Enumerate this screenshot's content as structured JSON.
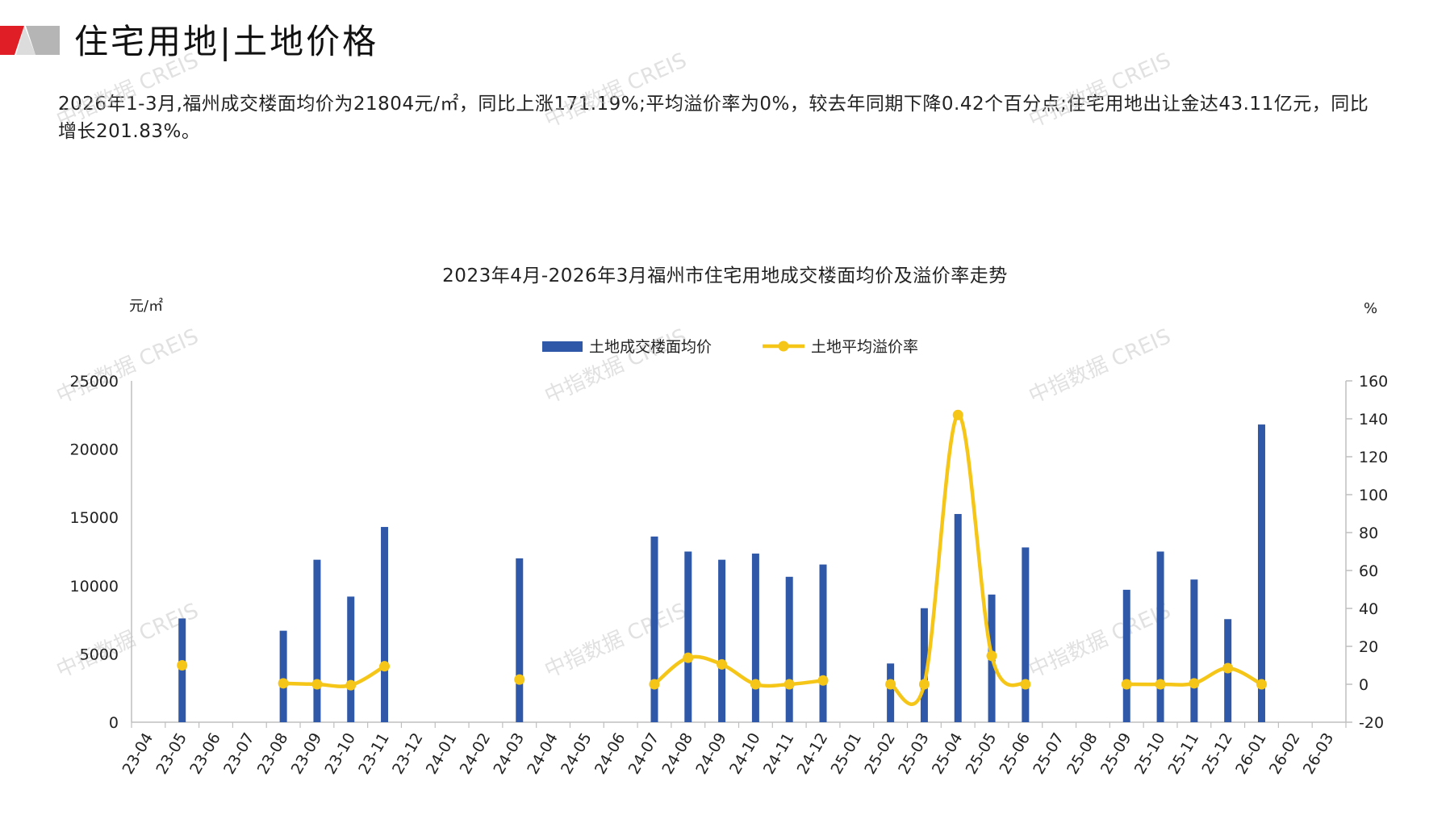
{
  "page": {
    "title": "住宅用地|土地价格",
    "summary": "2026年1-3月,福州成交楼面均价为21804元/㎡，同比上涨171.19%;平均溢价率为0%，较去年同期下降0.42个百分点;住宅用地出让金达43.11亿元，同比增长201.83%。",
    "watermark": "中指数据 CREIS"
  },
  "colors": {
    "bar": "#2f58a8",
    "line": "#f5c518",
    "logo_red": "#e01e25",
    "logo_grey": "#b5b5b5"
  },
  "chart_data": {
    "type": "bar",
    "title": "2023年4月-2026年3月福州市住宅用地成交楼面均价及溢价率走势",
    "y_left_unit": "元/㎡",
    "y_right_unit": "%",
    "ylim_left": [
      0,
      25000
    ],
    "yticks_left": [
      0,
      5000,
      10000,
      15000,
      20000,
      25000
    ],
    "ylim_right": [
      -20,
      160
    ],
    "yticks_right": [
      -20,
      0,
      20,
      40,
      60,
      80,
      100,
      120,
      140,
      160
    ],
    "legend_position": "top-center",
    "categories": [
      "23-04",
      "23-05",
      "23-06",
      "23-07",
      "23-08",
      "23-09",
      "23-10",
      "23-11",
      "23-12",
      "24-01",
      "24-02",
      "24-03",
      "24-04",
      "24-05",
      "24-06",
      "24-07",
      "24-08",
      "24-09",
      "24-10",
      "24-11",
      "24-12",
      "25-01",
      "25-02",
      "25-03",
      "25-04",
      "25-05",
      "25-06",
      "25-07",
      "25-08",
      "25-09",
      "25-10",
      "25-11",
      "25-12",
      "26-01",
      "26-02",
      "26-03"
    ],
    "series": [
      {
        "name": "土地成交楼面均价",
        "type": "bar",
        "axis": "left",
        "values": [
          null,
          7600,
          null,
          null,
          6700,
          11900,
          9200,
          14300,
          null,
          null,
          null,
          12000,
          null,
          null,
          null,
          13600,
          12500,
          11900,
          12350,
          10650,
          11550,
          null,
          4300,
          8350,
          15250,
          9350,
          12800,
          null,
          null,
          9700,
          12500,
          10450,
          7550,
          21804,
          null,
          null
        ]
      },
      {
        "name": "土地平均溢价率",
        "type": "line",
        "axis": "right",
        "values": [
          null,
          10,
          null,
          null,
          0.5,
          0,
          -0.5,
          9.5,
          null,
          null,
          null,
          2.5,
          null,
          null,
          null,
          0,
          14,
          10.5,
          0,
          0,
          2,
          null,
          0,
          0,
          142,
          15,
          0,
          null,
          null,
          0,
          0,
          0.5,
          8.5,
          0,
          null,
          null
        ]
      }
    ]
  }
}
